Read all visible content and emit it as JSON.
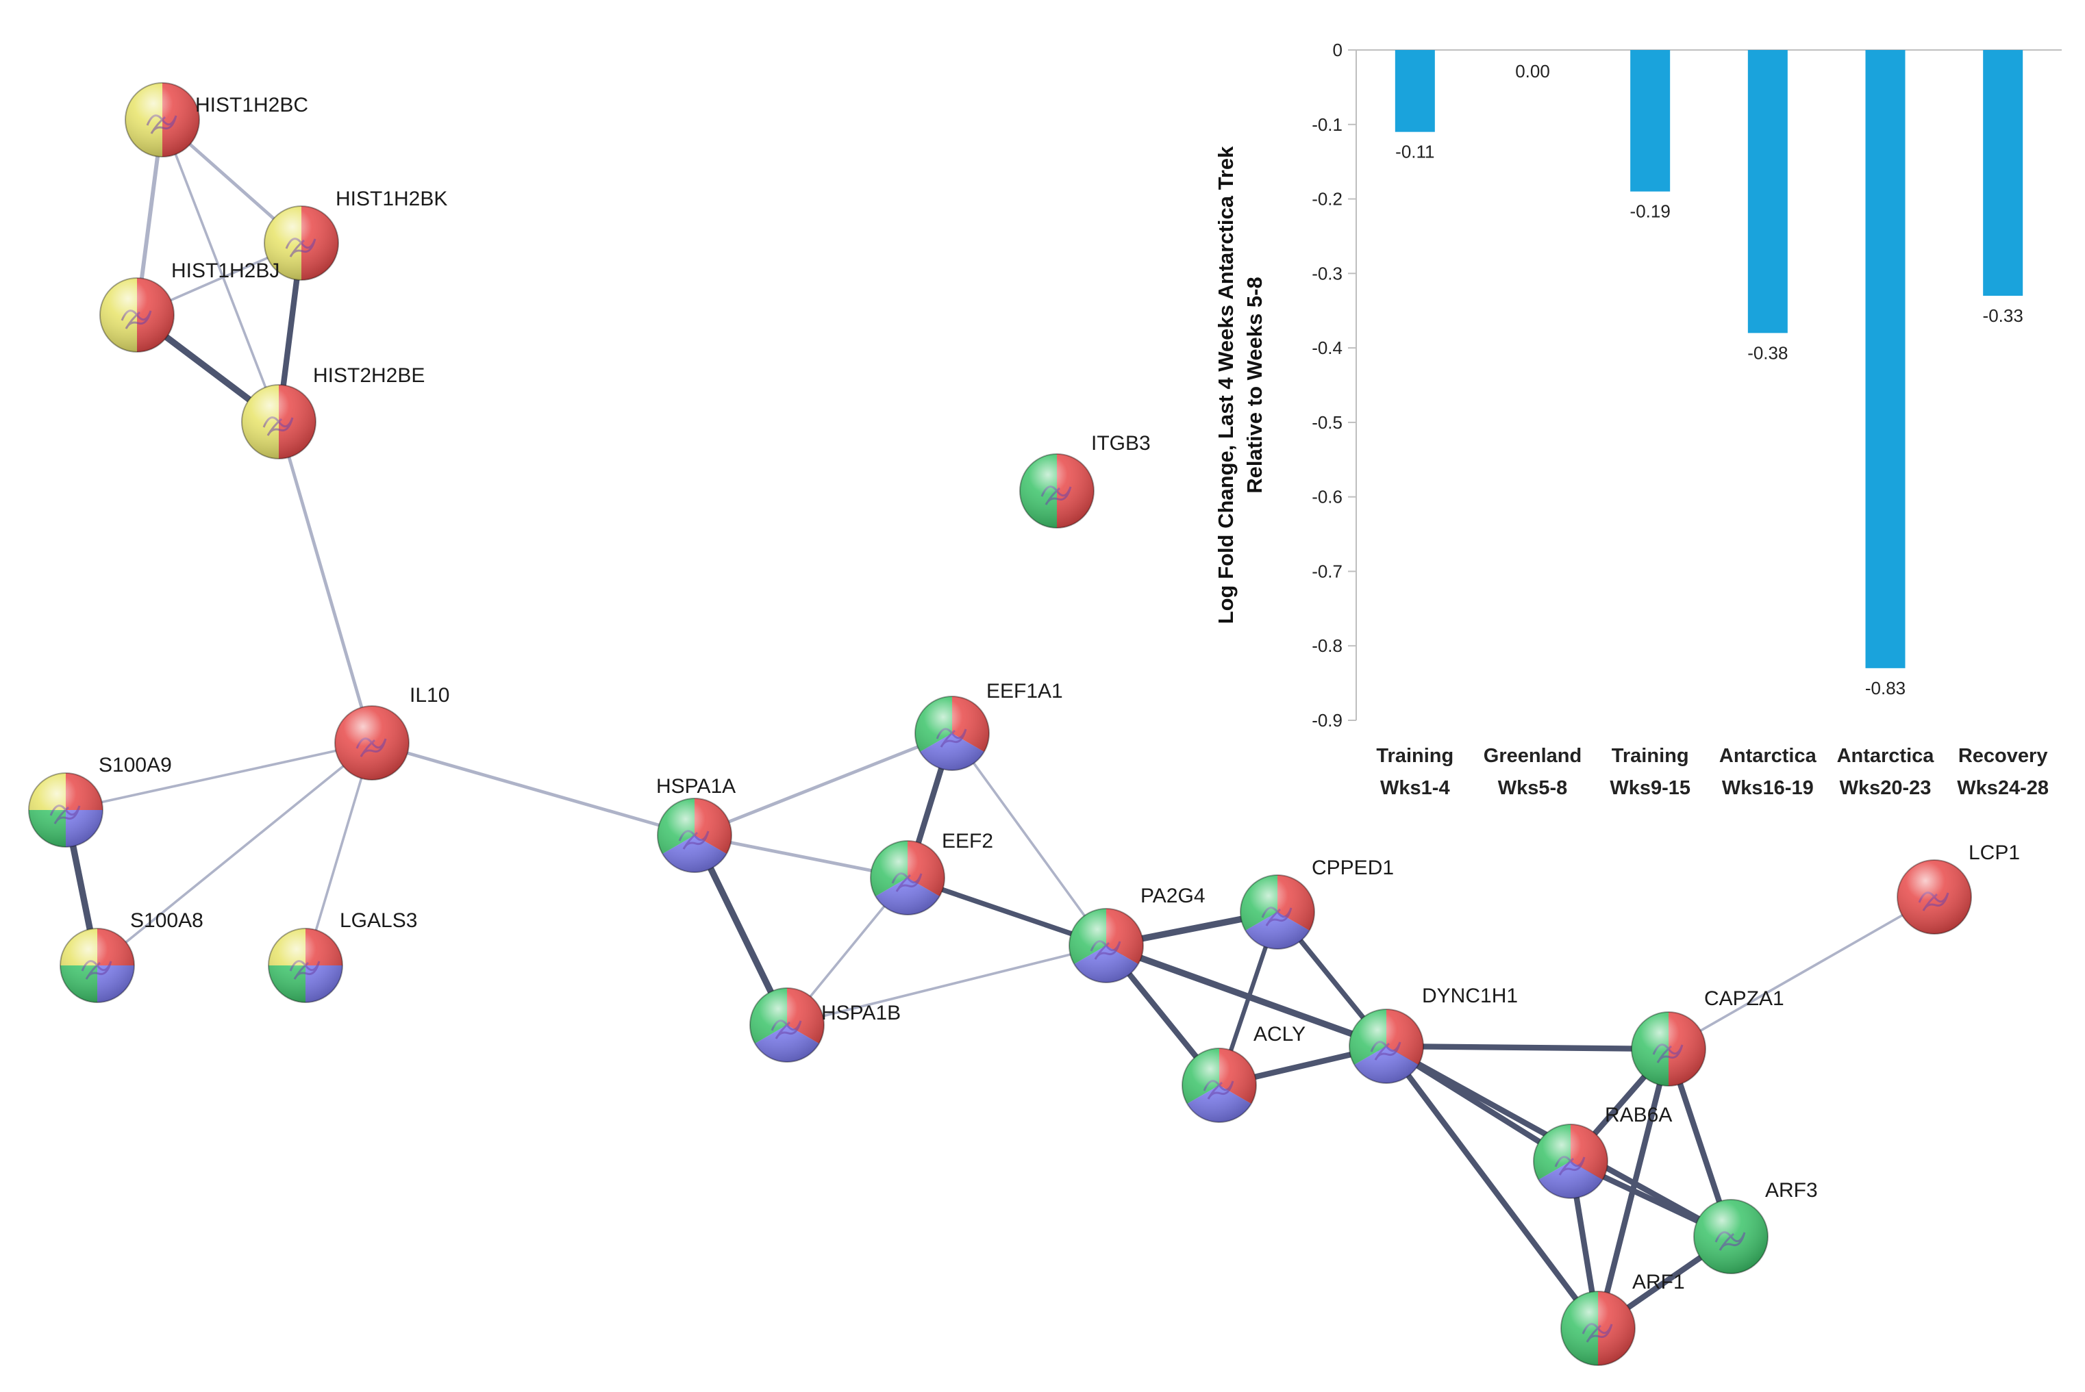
{
  "network": {
    "nodes": [
      {
        "id": "HIST1H2BC",
        "colors": [
          "#e8e46a",
          "#e84a4a"
        ]
      },
      {
        "id": "HIST1H2BK",
        "colors": [
          "#e8e46a",
          "#e84a4a"
        ]
      },
      {
        "id": "HIST1H2BJ",
        "colors": [
          "#e8e46a",
          "#e84a4a"
        ]
      },
      {
        "id": "HIST2H2BE",
        "colors": [
          "#e8e46a",
          "#e84a4a"
        ]
      },
      {
        "id": "ITGB3",
        "colors": [
          "#3cc46a",
          "#e84a4a"
        ]
      },
      {
        "id": "IL10",
        "colors": [
          "#e84a4a"
        ]
      },
      {
        "id": "EEF1A1",
        "colors": [
          "#3cc46a",
          "#e84a4a",
          "#7b7bf0"
        ]
      },
      {
        "id": "S100A9",
        "colors": [
          "#e8e46a",
          "#e84a4a",
          "#7b7bf0",
          "#3cc46a"
        ]
      },
      {
        "id": "HSPA1A",
        "colors": [
          "#3cc46a",
          "#e84a4a",
          "#7b7bf0"
        ]
      },
      {
        "id": "EEF2",
        "colors": [
          "#3cc46a",
          "#e84a4a",
          "#7b7bf0"
        ]
      },
      {
        "id": "S100A8",
        "colors": [
          "#e8e46a",
          "#e84a4a",
          "#7b7bf0",
          "#3cc46a"
        ]
      },
      {
        "id": "LGALS3",
        "colors": [
          "#e8e46a",
          "#e84a4a",
          "#7b7bf0",
          "#3cc46a"
        ]
      },
      {
        "id": "HSPA1B",
        "colors": [
          "#3cc46a",
          "#e84a4a",
          "#7b7bf0"
        ]
      },
      {
        "id": "PA2G4",
        "colors": [
          "#3cc46a",
          "#e84a4a",
          "#7b7bf0"
        ]
      },
      {
        "id": "CPPED1",
        "colors": [
          "#3cc46a",
          "#e84a4a",
          "#7b7bf0"
        ]
      },
      {
        "id": "LCP1",
        "colors": [
          "#e84a4a"
        ]
      },
      {
        "id": "ACLY",
        "colors": [
          "#3cc46a",
          "#e84a4a",
          "#7b7bf0"
        ]
      },
      {
        "id": "DYNC1H1",
        "colors": [
          "#3cc46a",
          "#e84a4a",
          "#7b7bf0"
        ]
      },
      {
        "id": "CAPZA1",
        "colors": [
          "#3cc46a",
          "#e84a4a"
        ]
      },
      {
        "id": "RAB6A",
        "colors": [
          "#3cc46a",
          "#e84a4a",
          "#7b7bf0"
        ]
      },
      {
        "id": "ARF3",
        "colors": [
          "#3cc46a"
        ]
      },
      {
        "id": "ARF1",
        "colors": [
          "#3cc46a",
          "#e84a4a"
        ]
      }
    ],
    "edges": [
      {
        "a": "HIST1H2BC",
        "b": "HIST1H2BK",
        "w": 4
      },
      {
        "a": "HIST1H2BC",
        "b": "HIST1H2BJ",
        "w": 5
      },
      {
        "a": "HIST1H2BC",
        "b": "HIST2H2BE",
        "w": 3
      },
      {
        "a": "HIST1H2BK",
        "b": "HIST1H2BJ",
        "w": 3
      },
      {
        "a": "HIST1H2BK",
        "b": "HIST2H2BE",
        "w": 8
      },
      {
        "a": "HIST1H2BJ",
        "b": "HIST2H2BE",
        "w": 9
      },
      {
        "a": "HIST2H2BE",
        "b": "IL10",
        "w": 4
      },
      {
        "a": "IL10",
        "b": "S100A9",
        "w": 3
      },
      {
        "a": "IL10",
        "b": "S100A8",
        "w": 3
      },
      {
        "a": "IL10",
        "b": "LGALS3",
        "w": 3
      },
      {
        "a": "IL10",
        "b": "HSPA1A",
        "w": 4
      },
      {
        "a": "S100A9",
        "b": "S100A8",
        "w": 9
      },
      {
        "a": "HSPA1A",
        "b": "EEF1A1",
        "w": 4
      },
      {
        "a": "HSPA1A",
        "b": "EEF2",
        "w": 4
      },
      {
        "a": "HSPA1A",
        "b": "HSPA1B",
        "w": 9
      },
      {
        "a": "EEF1A1",
        "b": "EEF2",
        "w": 8
      },
      {
        "a": "EEF1A1",
        "b": "PA2G4",
        "w": 3
      },
      {
        "a": "EEF2",
        "b": "HSPA1B",
        "w": 3
      },
      {
        "a": "EEF2",
        "b": "PA2G4",
        "w": 7
      },
      {
        "a": "HSPA1B",
        "b": "PA2G4",
        "w": 3
      },
      {
        "a": "PA2G4",
        "b": "CPPED1",
        "w": 9
      },
      {
        "a": "PA2G4",
        "b": "ACLY",
        "w": 8
      },
      {
        "a": "PA2G4",
        "b": "DYNC1H1",
        "w": 9
      },
      {
        "a": "CPPED1",
        "b": "ACLY",
        "w": 6
      },
      {
        "a": "CPPED1",
        "b": "DYNC1H1",
        "w": 7
      },
      {
        "a": "ACLY",
        "b": "DYNC1H1",
        "w": 8
      },
      {
        "a": "DYNC1H1",
        "b": "CAPZA1",
        "w": 8
      },
      {
        "a": "DYNC1H1",
        "b": "RAB6A",
        "w": 8
      },
      {
        "a": "DYNC1H1",
        "b": "ARF3",
        "w": 8
      },
      {
        "a": "DYNC1H1",
        "b": "ARF1",
        "w": 8
      },
      {
        "a": "CAPZA1",
        "b": "LCP1",
        "w": 3
      },
      {
        "a": "CAPZA1",
        "b": "RAB6A",
        "w": 8
      },
      {
        "a": "CAPZA1",
        "b": "ARF3",
        "w": 8
      },
      {
        "a": "CAPZA1",
        "b": "ARF1",
        "w": 8
      },
      {
        "a": "RAB6A",
        "b": "ARF3",
        "w": 8
      },
      {
        "a": "RAB6A",
        "b": "ARF1",
        "w": 8
      },
      {
        "a": "ARF3",
        "b": "ARF1",
        "w": 8
      }
    ]
  },
  "chart_data": {
    "type": "bar",
    "categories": [
      [
        "Training",
        "Wks1-4"
      ],
      [
        "Greenland",
        "Wks5-8"
      ],
      [
        "Training",
        "Wks9-15"
      ],
      [
        "Antarctica",
        "Wks16-19"
      ],
      [
        "Antarctica",
        "Wks20-23"
      ],
      [
        "Recovery",
        "Wks24-28"
      ]
    ],
    "values": [
      -0.11,
      0.0,
      -0.19,
      -0.38,
      -0.83,
      -0.33
    ],
    "value_labels": [
      "-0.11",
      "0.00",
      "-0.19",
      "-0.38",
      "-0.83",
      "-0.33"
    ],
    "ylabel": [
      "Log Fold Change, Last 4 Weeks Antarctica Trek",
      "Relative to Weeks 5-8"
    ],
    "ylim": [
      -0.9,
      0
    ],
    "yticks": [
      0,
      -0.1,
      -0.2,
      -0.3,
      -0.4,
      -0.5,
      -0.6,
      -0.7,
      -0.8,
      -0.9
    ],
    "ytick_labels": [
      "0",
      "-0.1",
      "-0.2",
      "-0.3",
      "-0.4",
      "-0.5",
      "-0.6",
      "-0.7",
      "-0.8",
      "-0.9"
    ],
    "bar_color": "#1aa3dc",
    "grid": false
  }
}
